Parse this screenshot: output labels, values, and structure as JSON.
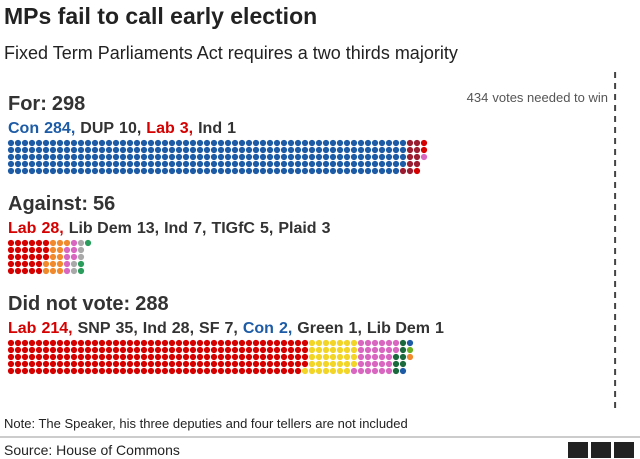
{
  "chart_data": {
    "type": "waffle",
    "title": "MPs fail to call early election",
    "subtitle": "Fixed Term Parliaments Act requires a two thirds majority",
    "threshold": 434,
    "threshold_label": "votes needed to win",
    "separator": ",",
    "groups": [
      {
        "label": "For:",
        "total": 298,
        "series": [
          {
            "name": "Con",
            "values": [
              284
            ],
            "color": "#1d5ba6",
            "label_color": "#1d5ba6"
          },
          {
            "name": "DUP",
            "values": [
              10
            ],
            "color": "#9b1b30",
            "label_color": "#333333"
          },
          {
            "name": "Lab",
            "values": [
              3
            ],
            "color": "#d50000",
            "label_color": "#d50000"
          },
          {
            "name": "Ind",
            "values": [
              1
            ],
            "color": "#d966c0",
            "label_color": "#333333"
          }
        ]
      },
      {
        "label": "Against:",
        "total": 56,
        "series": [
          {
            "name": "Lab",
            "values": [
              28
            ],
            "color": "#d50000",
            "label_color": "#d50000"
          },
          {
            "name": "Lib Dem",
            "values": [
              13
            ],
            "color": "#f08a2c",
            "label_color": "#333333"
          },
          {
            "name": "Ind",
            "values": [
              7
            ],
            "color": "#d966c0",
            "label_color": "#333333"
          },
          {
            "name": "TIGfC",
            "values": [
              5
            ],
            "color": "#a9a9a9",
            "label_color": "#333333"
          },
          {
            "name": "Plaid",
            "values": [
              3
            ],
            "color": "#2a9d5c",
            "label_color": "#333333"
          }
        ]
      },
      {
        "label": "Did not vote:",
        "total": 288,
        "series": [
          {
            "name": "Lab",
            "values": [
              214
            ],
            "color": "#d50000",
            "label_color": "#d50000"
          },
          {
            "name": "SNP",
            "values": [
              35
            ],
            "color": "#f2d526",
            "label_color": "#333333"
          },
          {
            "name": "Ind",
            "values": [
              28
            ],
            "color": "#d966c0",
            "label_color": "#333333"
          },
          {
            "name": "SF",
            "values": [
              7
            ],
            "color": "#1b6a3e",
            "label_color": "#333333"
          },
          {
            "name": "Con",
            "values": [
              2
            ],
            "color": "#1d5ba6",
            "label_color": "#1d5ba6"
          },
          {
            "name": "Green",
            "values": [
              1
            ],
            "color": "#6ab023",
            "label_color": "#333333"
          },
          {
            "name": "Lib Dem",
            "values": [
              1
            ],
            "color": "#f08a2c",
            "label_color": "#333333"
          }
        ]
      }
    ],
    "note": "Note: The Speaker, his three deputies and four tellers are not included",
    "source": "Source: House of Commons",
    "logo": [
      "B",
      "B",
      "C"
    ]
  }
}
